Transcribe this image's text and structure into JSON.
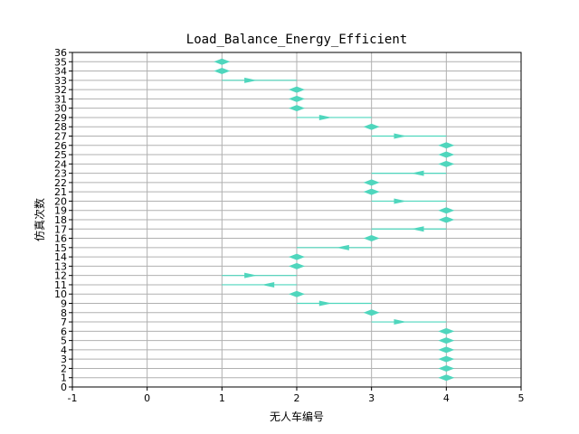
{
  "chart_data": {
    "type": "line",
    "title": "Load_Balance_Energy_Efficient",
    "xlabel": "无人车编号",
    "ylabel": "仿真次数",
    "xlim": [
      -1,
      5
    ],
    "ylim": [
      0,
      36
    ],
    "xticks": [
      -1,
      0,
      1,
      2,
      3,
      4,
      5
    ],
    "yticks": [
      0,
      1,
      2,
      3,
      4,
      5,
      6,
      7,
      8,
      9,
      10,
      11,
      12,
      13,
      14,
      15,
      16,
      17,
      18,
      19,
      20,
      21,
      22,
      23,
      24,
      25,
      26,
      27,
      28,
      29,
      30,
      31,
      32,
      33,
      34,
      35,
      36
    ],
    "grid": true,
    "arrow_color": "#4fd6bd",
    "series": [
      {
        "steps": [
          {
            "y": 1,
            "from": 4,
            "to": 4
          },
          {
            "y": 2,
            "from": 4,
            "to": 4
          },
          {
            "y": 3,
            "from": 4,
            "to": 4
          },
          {
            "y": 4,
            "from": 4,
            "to": 4
          },
          {
            "y": 5,
            "from": 4,
            "to": 4
          },
          {
            "y": 6,
            "from": 4,
            "to": 4
          },
          {
            "y": 7,
            "from": 3,
            "to": 4
          },
          {
            "y": 8,
            "from": 3,
            "to": 3
          },
          {
            "y": 9,
            "from": 2,
            "to": 3
          },
          {
            "y": 10,
            "from": 2,
            "to": 2
          },
          {
            "y": 11,
            "from": 2,
            "to": 1
          },
          {
            "y": 12,
            "from": 1,
            "to": 2
          },
          {
            "y": 13,
            "from": 2,
            "to": 2
          },
          {
            "y": 14,
            "from": 2,
            "to": 2
          },
          {
            "y": 15,
            "from": 3,
            "to": 2
          },
          {
            "y": 16,
            "from": 3,
            "to": 3
          },
          {
            "y": 17,
            "from": 4,
            "to": 3
          },
          {
            "y": 18,
            "from": 4,
            "to": 4
          },
          {
            "y": 19,
            "from": 4,
            "to": 4
          },
          {
            "y": 20,
            "from": 3,
            "to": 4
          },
          {
            "y": 21,
            "from": 3,
            "to": 3
          },
          {
            "y": 22,
            "from": 3,
            "to": 3
          },
          {
            "y": 23,
            "from": 4,
            "to": 3
          },
          {
            "y": 24,
            "from": 4,
            "to": 4
          },
          {
            "y": 25,
            "from": 4,
            "to": 4
          },
          {
            "y": 26,
            "from": 4,
            "to": 4
          },
          {
            "y": 27,
            "from": 3,
            "to": 4
          },
          {
            "y": 28,
            "from": 3,
            "to": 3
          },
          {
            "y": 29,
            "from": 2,
            "to": 3
          },
          {
            "y": 30,
            "from": 2,
            "to": 2
          },
          {
            "y": 31,
            "from": 2,
            "to": 2
          },
          {
            "y": 32,
            "from": 2,
            "to": 2
          },
          {
            "y": 33,
            "from": 1,
            "to": 2
          },
          {
            "y": 34,
            "from": 1,
            "to": 1
          },
          {
            "y": 35,
            "from": 1,
            "to": 1
          }
        ]
      }
    ]
  }
}
